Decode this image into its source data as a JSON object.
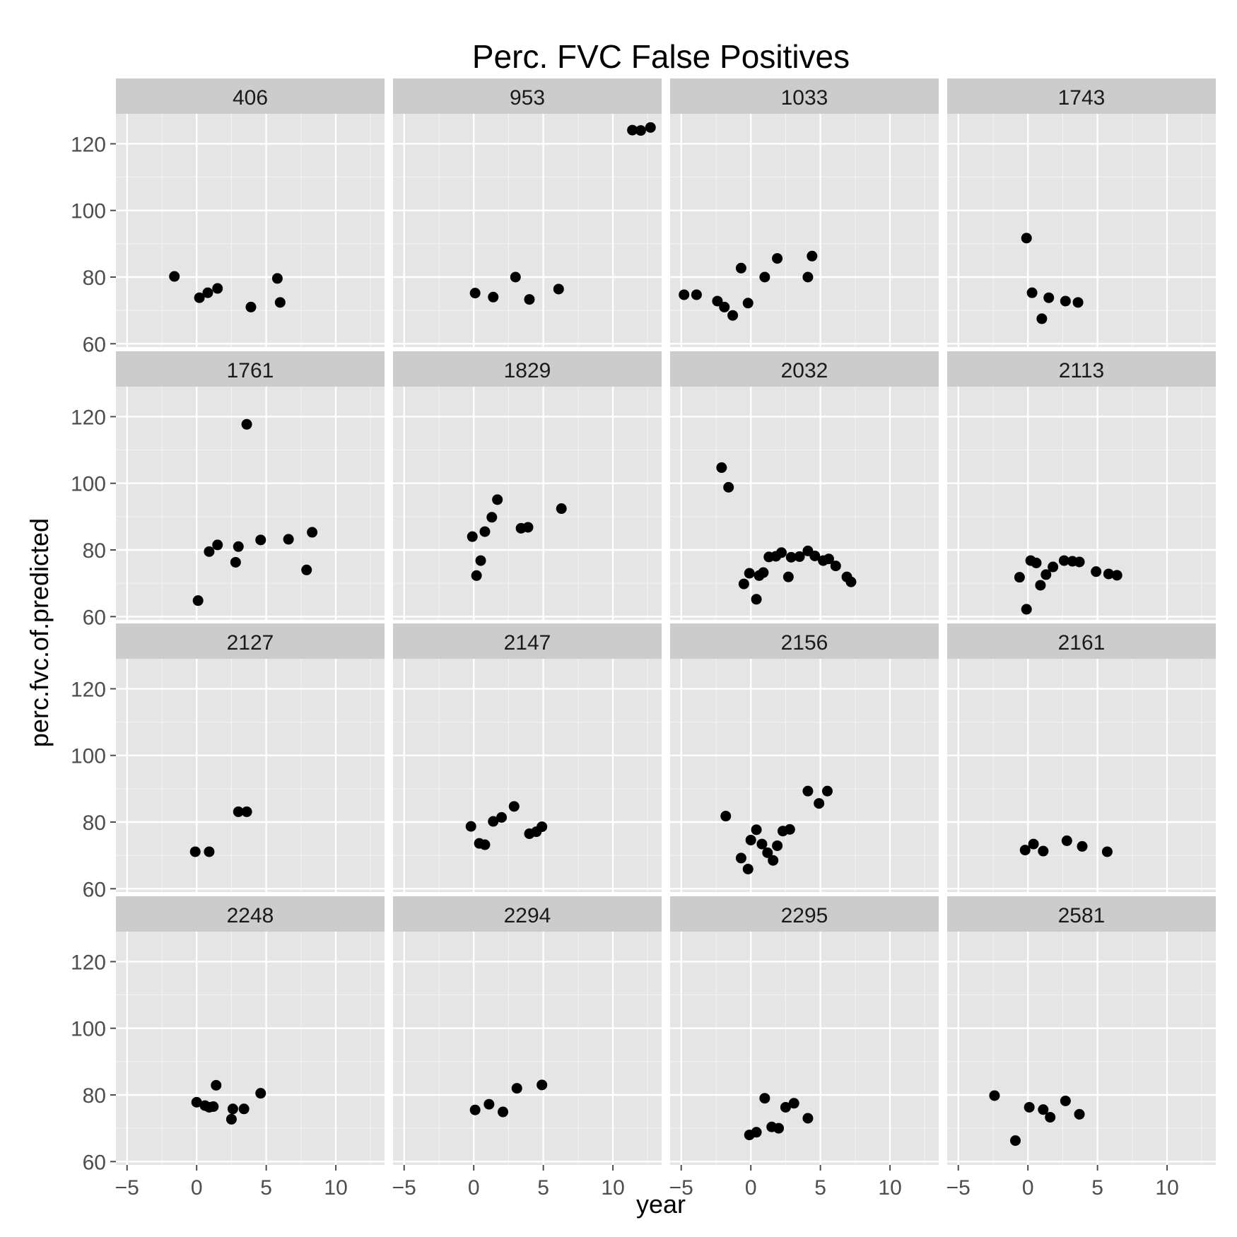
{
  "chart_data": {
    "type": "scatter",
    "title": "Perc. FVC False Positives",
    "xlabel": "year",
    "ylabel": "perc.fvc.of.predicted",
    "xlim": [
      -5.8,
      13.5
    ],
    "ylim": [
      59,
      129
    ],
    "x_ticks": [
      -5,
      0,
      5,
      10
    ],
    "y_ticks": [
      60,
      80,
      100,
      120
    ],
    "grid": true,
    "layout": {
      "rows": 4,
      "cols": 4
    },
    "panels": [
      {
        "label": "406",
        "points": [
          [
            -1.6,
            80.2
          ],
          [
            0.2,
            73.8
          ],
          [
            0.8,
            75.3
          ],
          [
            1.5,
            76.6
          ],
          [
            3.9,
            71.0
          ],
          [
            5.8,
            79.6
          ],
          [
            6.0,
            72.4
          ]
        ]
      },
      {
        "label": "953",
        "points": [
          [
            0.1,
            75.2
          ],
          [
            1.4,
            74.0
          ],
          [
            3.0,
            80.0
          ],
          [
            4.0,
            73.3
          ],
          [
            6.1,
            76.4
          ],
          [
            11.4,
            124.1
          ],
          [
            12.0,
            124.0
          ],
          [
            12.7,
            124.9
          ]
        ]
      },
      {
        "label": "1033",
        "points": [
          [
            -4.8,
            74.7
          ],
          [
            -3.9,
            74.7
          ],
          [
            -2.4,
            72.8
          ],
          [
            -1.9,
            71.0
          ],
          [
            -1.3,
            68.5
          ],
          [
            -0.7,
            82.7
          ],
          [
            -0.2,
            72.2
          ],
          [
            1.0,
            80.0
          ],
          [
            1.9,
            85.6
          ],
          [
            4.1,
            80.0
          ],
          [
            4.4,
            86.3
          ]
        ]
      },
      {
        "label": "1743",
        "points": [
          [
            -0.1,
            91.7
          ],
          [
            0.3,
            75.3
          ],
          [
            1.0,
            67.5
          ],
          [
            1.5,
            73.8
          ],
          [
            2.7,
            72.8
          ],
          [
            3.6,
            72.4
          ]
        ]
      },
      {
        "label": "1761",
        "points": [
          [
            0.1,
            64.8
          ],
          [
            0.9,
            79.5
          ],
          [
            1.5,
            81.5
          ],
          [
            2.8,
            76.3
          ],
          [
            3.0,
            81.0
          ],
          [
            3.6,
            117.7
          ],
          [
            4.6,
            83.0
          ],
          [
            6.6,
            83.2
          ],
          [
            7.9,
            74.0
          ],
          [
            8.3,
            85.3
          ]
        ]
      },
      {
        "label": "1829",
        "points": [
          [
            -0.1,
            84.0
          ],
          [
            0.2,
            72.3
          ],
          [
            0.5,
            76.8
          ],
          [
            0.8,
            85.5
          ],
          [
            1.3,
            89.8
          ],
          [
            1.7,
            95.1
          ],
          [
            3.4,
            86.5
          ],
          [
            3.9,
            86.8
          ],
          [
            6.3,
            92.4
          ]
        ]
      },
      {
        "label": "2032",
        "points": [
          [
            -2.1,
            104.7
          ],
          [
            -1.6,
            98.8
          ],
          [
            -0.5,
            69.8
          ],
          [
            -0.1,
            73.0
          ],
          [
            0.4,
            65.2
          ],
          [
            0.6,
            72.3
          ],
          [
            0.9,
            73.2
          ],
          [
            1.3,
            77.9
          ],
          [
            1.8,
            78.1
          ],
          [
            2.2,
            79.2
          ],
          [
            2.7,
            71.9
          ],
          [
            2.9,
            77.8
          ],
          [
            3.5,
            78.0
          ],
          [
            4.1,
            79.7
          ],
          [
            4.6,
            78.2
          ],
          [
            5.2,
            76.8
          ],
          [
            5.6,
            77.3
          ],
          [
            6.1,
            75.2
          ],
          [
            6.9,
            71.9
          ],
          [
            7.2,
            70.4
          ]
        ]
      },
      {
        "label": "2113",
        "points": [
          [
            -0.6,
            71.8
          ],
          [
            -0.1,
            62.2
          ],
          [
            0.2,
            76.8
          ],
          [
            0.6,
            76.1
          ],
          [
            0.9,
            69.4
          ],
          [
            1.3,
            72.6
          ],
          [
            1.8,
            74.9
          ],
          [
            2.6,
            76.8
          ],
          [
            3.2,
            76.6
          ],
          [
            3.7,
            76.4
          ],
          [
            4.9,
            73.5
          ],
          [
            5.8,
            72.8
          ],
          [
            6.4,
            72.4
          ]
        ]
      },
      {
        "label": "2127",
        "points": [
          [
            -0.1,
            71.1
          ],
          [
            0.9,
            71.1
          ],
          [
            3.0,
            83.1
          ],
          [
            3.6,
            83.1
          ]
        ]
      },
      {
        "label": "2147",
        "points": [
          [
            -0.2,
            78.7
          ],
          [
            0.4,
            73.6
          ],
          [
            0.8,
            73.2
          ],
          [
            1.4,
            80.2
          ],
          [
            2.0,
            81.4
          ],
          [
            2.9,
            84.7
          ],
          [
            4.0,
            76.5
          ],
          [
            4.5,
            77.1
          ],
          [
            4.9,
            78.6
          ]
        ]
      },
      {
        "label": "2156",
        "points": [
          [
            -1.8,
            81.8
          ],
          [
            -0.7,
            69.2
          ],
          [
            -0.2,
            65.9
          ],
          [
            0.0,
            74.6
          ],
          [
            0.4,
            77.7
          ],
          [
            0.8,
            73.4
          ],
          [
            1.2,
            70.8
          ],
          [
            1.6,
            68.5
          ],
          [
            1.9,
            72.9
          ],
          [
            2.3,
            77.3
          ],
          [
            2.8,
            77.8
          ],
          [
            4.1,
            89.3
          ],
          [
            4.9,
            85.6
          ],
          [
            5.5,
            89.3
          ]
        ]
      },
      {
        "label": "2161",
        "points": [
          [
            -0.2,
            71.6
          ],
          [
            0.4,
            73.4
          ],
          [
            1.1,
            71.3
          ],
          [
            2.8,
            74.4
          ],
          [
            3.9,
            72.7
          ],
          [
            5.7,
            71.1
          ]
        ]
      },
      {
        "label": "2248",
        "points": [
          [
            0.0,
            77.8
          ],
          [
            0.6,
            76.8
          ],
          [
            0.9,
            76.3
          ],
          [
            1.2,
            76.5
          ],
          [
            1.4,
            82.9
          ],
          [
            2.5,
            72.7
          ],
          [
            2.6,
            75.8
          ],
          [
            3.4,
            75.8
          ],
          [
            4.6,
            80.5
          ]
        ]
      },
      {
        "label": "2294",
        "points": [
          [
            0.1,
            75.5
          ],
          [
            1.1,
            77.2
          ],
          [
            2.1,
            74.9
          ],
          [
            3.1,
            82.0
          ],
          [
            4.9,
            83.0
          ]
        ]
      },
      {
        "label": "2295",
        "points": [
          [
            -0.1,
            68.0
          ],
          [
            0.4,
            68.8
          ],
          [
            1.0,
            79.0
          ],
          [
            1.5,
            70.4
          ],
          [
            2.0,
            70.0
          ],
          [
            2.5,
            76.3
          ],
          [
            3.1,
            77.5
          ],
          [
            4.1,
            73.0
          ]
        ]
      },
      {
        "label": "2581",
        "points": [
          [
            -2.4,
            79.8
          ],
          [
            -0.9,
            66.3
          ],
          [
            0.1,
            76.3
          ],
          [
            1.1,
            75.6
          ],
          [
            1.6,
            73.3
          ],
          [
            2.7,
            78.2
          ],
          [
            3.7,
            74.2
          ]
        ]
      }
    ]
  }
}
